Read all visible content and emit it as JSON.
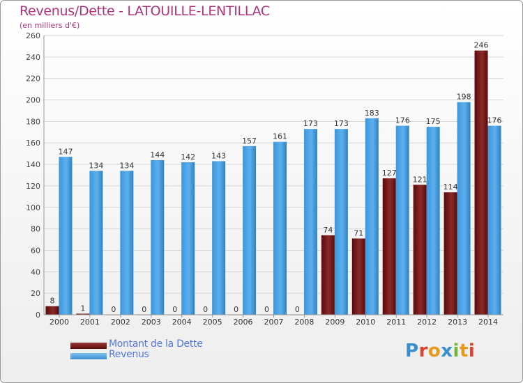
{
  "chart_data": {
    "type": "bar",
    "title": "Revenus/Dette - LATOUILLE-LENTILLAC",
    "subtitle": "(en milliers d'€)",
    "categories": [
      "2000",
      "2001",
      "2002",
      "2003",
      "2004",
      "2005",
      "2006",
      "2007",
      "2008",
      "2009",
      "2010",
      "2011",
      "2012",
      "2013",
      "2014"
    ],
    "series": [
      {
        "name": "Montant de la Dette",
        "color": "#7a1f1f",
        "values": [
          8,
          1,
          0,
          0,
          0,
          0,
          0,
          0,
          0,
          74,
          71,
          127,
          121,
          114,
          246
        ],
        "labels": [
          "8",
          "1",
          "0",
          "0",
          "0",
          "0",
          "0",
          "0",
          "0",
          "74",
          "71",
          "127",
          "121",
          "114",
          "246"
        ]
      },
      {
        "name": "Revenus",
        "color": "#4aa3e6",
        "values": [
          147,
          134,
          134,
          144,
          142,
          143,
          157,
          161,
          173,
          173,
          183,
          176,
          175,
          198,
          176
        ],
        "labels": [
          "147",
          "134",
          "134",
          "144",
          "142",
          "143",
          "157",
          "161",
          "173",
          "173",
          "183",
          "176",
          "175",
          "198",
          "176"
        ]
      }
    ],
    "ylim": [
      0,
      260
    ],
    "yticks": [
      0,
      20,
      40,
      60,
      80,
      100,
      120,
      140,
      160,
      180,
      200,
      220,
      240,
      260
    ],
    "grid": true,
    "legend_position": "bottom-left"
  },
  "legend": {
    "debt_label": "Montant de la Dette",
    "revenue_label": "Revenus",
    "debt_color": "#7a1f1f",
    "revenue_color": "#4aa3e6"
  },
  "logo": {
    "text": "Proxiti",
    "letters": [
      "P",
      "r",
      "o",
      "x",
      "i",
      "t",
      "i"
    ]
  }
}
